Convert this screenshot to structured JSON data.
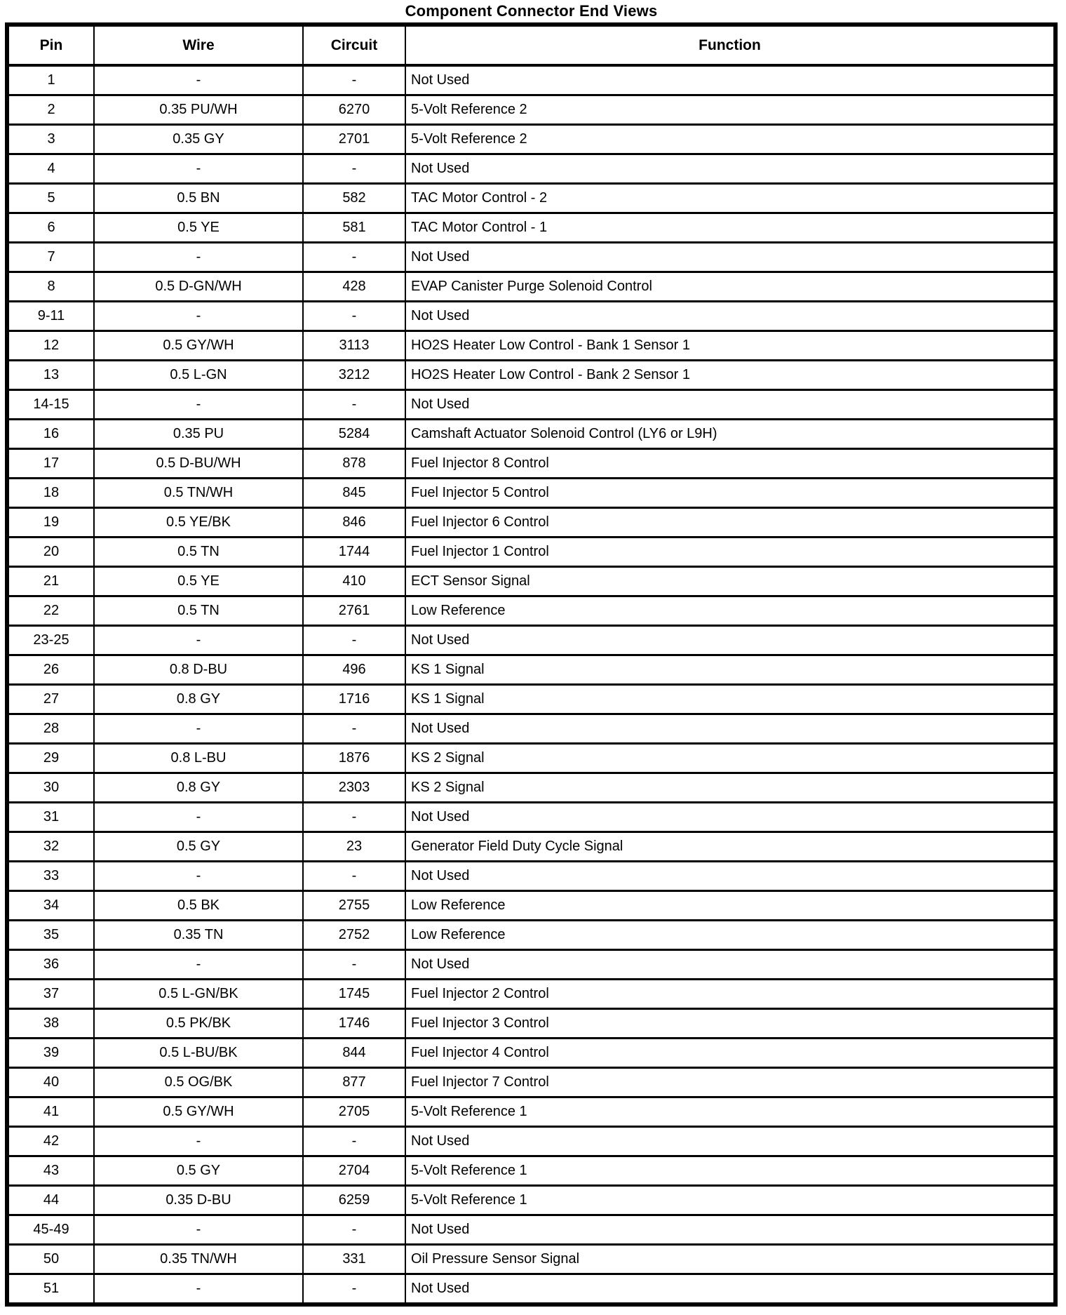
{
  "title": "Component Connector End Views",
  "colors": {
    "text": "#000000",
    "background": "#ffffff",
    "border": "#000000"
  },
  "table": {
    "headers": [
      "Pin",
      "Wire",
      "Circuit",
      "Function"
    ],
    "rows": [
      [
        "1",
        "-",
        "-",
        "Not Used"
      ],
      [
        "2",
        "0.35 PU/WH",
        "6270",
        "5-Volt Reference 2"
      ],
      [
        "3",
        "0.35 GY",
        "2701",
        "5-Volt Reference 2"
      ],
      [
        "4",
        "-",
        "-",
        "Not Used"
      ],
      [
        "5",
        "0.5 BN",
        "582",
        "TAC Motor Control - 2"
      ],
      [
        "6",
        "0.5 YE",
        "581",
        "TAC Motor Control - 1"
      ],
      [
        "7",
        "-",
        "-",
        "Not Used"
      ],
      [
        "8",
        "0.5 D-GN/WH",
        "428",
        "EVAP Canister Purge Solenoid Control"
      ],
      [
        "9-11",
        "-",
        "-",
        "Not Used"
      ],
      [
        "12",
        "0.5 GY/WH",
        "3113",
        "HO2S Heater Low Control - Bank 1 Sensor 1"
      ],
      [
        "13",
        "0.5 L-GN",
        "3212",
        "HO2S Heater Low Control - Bank 2 Sensor 1"
      ],
      [
        "14-15",
        "-",
        "-",
        "Not Used"
      ],
      [
        "16",
        "0.35 PU",
        "5284",
        "Camshaft Actuator Solenoid Control (LY6 or L9H)"
      ],
      [
        "17",
        "0.5 D-BU/WH",
        "878",
        "Fuel Injector 8 Control"
      ],
      [
        "18",
        "0.5 TN/WH",
        "845",
        "Fuel Injector 5 Control"
      ],
      [
        "19",
        "0.5 YE/BK",
        "846",
        "Fuel Injector 6 Control"
      ],
      [
        "20",
        "0.5 TN",
        "1744",
        "Fuel Injector 1 Control"
      ],
      [
        "21",
        "0.5 YE",
        "410",
        "ECT Sensor Signal"
      ],
      [
        "22",
        "0.5 TN",
        "2761",
        "Low Reference"
      ],
      [
        "23-25",
        "-",
        "-",
        "Not Used"
      ],
      [
        "26",
        "0.8 D-BU",
        "496",
        "KS 1 Signal"
      ],
      [
        "27",
        "0.8 GY",
        "1716",
        "KS 1 Signal"
      ],
      [
        "28",
        "-",
        "-",
        "Not Used"
      ],
      [
        "29",
        "0.8 L-BU",
        "1876",
        "KS 2 Signal"
      ],
      [
        "30",
        "0.8 GY",
        "2303",
        "KS 2 Signal"
      ],
      [
        "31",
        "-",
        "-",
        "Not Used"
      ],
      [
        "32",
        "0.5 GY",
        "23",
        "Generator Field Duty Cycle Signal"
      ],
      [
        "33",
        "-",
        "-",
        "Not Used"
      ],
      [
        "34",
        "0.5 BK",
        "2755",
        "Low Reference"
      ],
      [
        "35",
        "0.35 TN",
        "2752",
        "Low Reference"
      ],
      [
        "36",
        "-",
        "-",
        "Not Used"
      ],
      [
        "37",
        "0.5 L-GN/BK",
        "1745",
        "Fuel Injector 2 Control"
      ],
      [
        "38",
        "0.5 PK/BK",
        "1746",
        "Fuel Injector 3 Control"
      ],
      [
        "39",
        "0.5 L-BU/BK",
        "844",
        "Fuel Injector 4 Control"
      ],
      [
        "40",
        "0.5 OG/BK",
        "877",
        "Fuel Injector 7 Control"
      ],
      [
        "41",
        "0.5 GY/WH",
        "2705",
        "5-Volt Reference 1"
      ],
      [
        "42",
        "-",
        "-",
        "Not Used"
      ],
      [
        "43",
        "0.5 GY",
        "2704",
        "5-Volt Reference 1"
      ],
      [
        "44",
        "0.35 D-BU",
        "6259",
        "5-Volt Reference 1"
      ],
      [
        "45-49",
        "-",
        "-",
        "Not Used"
      ],
      [
        "50",
        "0.35 TN/WH",
        "331",
        "Oil Pressure Sensor Signal"
      ],
      [
        "51",
        "-",
        "-",
        "Not Used"
      ]
    ]
  }
}
